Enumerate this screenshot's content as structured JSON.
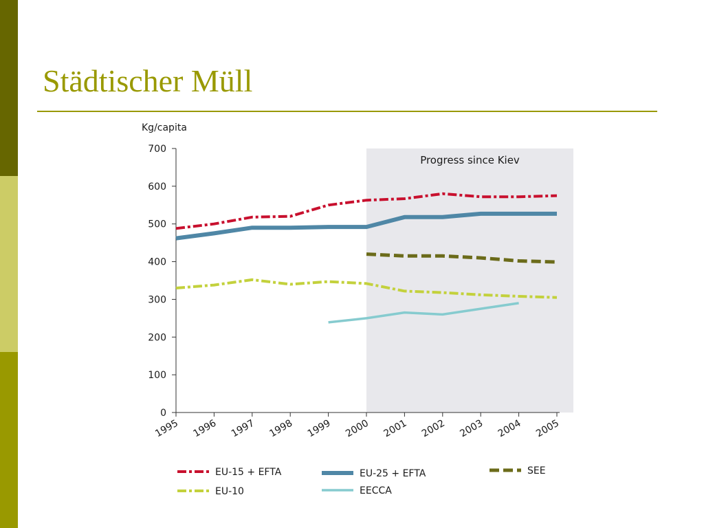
{
  "slide": {
    "title": "Städtischer Müll"
  },
  "colors": {
    "sidebar_top": "#666600",
    "sidebar_middle": "#cccc66",
    "sidebar_bottom": "#999900",
    "title": "#999900",
    "shade": "#e8e8ec"
  },
  "chart_data": {
    "type": "line",
    "title": "",
    "xlabel": "",
    "ylabel": "Kg/capita",
    "ylim": [
      0,
      700
    ],
    "yticks": [
      0,
      100,
      200,
      300,
      400,
      500,
      600,
      700
    ],
    "x": [
      "1995",
      "1996",
      "1997",
      "1998",
      "1999",
      "2000",
      "2001",
      "2002",
      "2003",
      "2004",
      "2005"
    ],
    "grid": false,
    "legend_position": "bottom",
    "annotation": {
      "text": "Progress since Kiev",
      "x_from": "2000",
      "x_to": "2005"
    },
    "series": [
      {
        "name": "EU-15 + EFTA",
        "color": "#c8102e",
        "dash": "dash-dot",
        "values": [
          488,
          500,
          518,
          520,
          550,
          563,
          567,
          580,
          572,
          572,
          575
        ]
      },
      {
        "name": "EU-25 + EFTA",
        "color": "#4f87a6",
        "dash": "solid-thick",
        "values": [
          462,
          475,
          490,
          490,
          492,
          492,
          518,
          518,
          527,
          527,
          527
        ]
      },
      {
        "name": "SEE",
        "color": "#6b6b1a",
        "dash": "dash",
        "values": [
          null,
          null,
          null,
          null,
          null,
          420,
          415,
          415,
          410,
          402,
          399
        ]
      },
      {
        "name": "EU-10",
        "color": "#c3d13c",
        "dash": "dash-dot",
        "values": [
          330,
          338,
          352,
          340,
          347,
          342,
          322,
          318,
          312,
          308,
          305
        ]
      },
      {
        "name": "EECCA",
        "color": "#86cbcf",
        "dash": "solid",
        "values": [
          null,
          null,
          null,
          null,
          239,
          250,
          265,
          260,
          275,
          290,
          null
        ]
      }
    ]
  }
}
